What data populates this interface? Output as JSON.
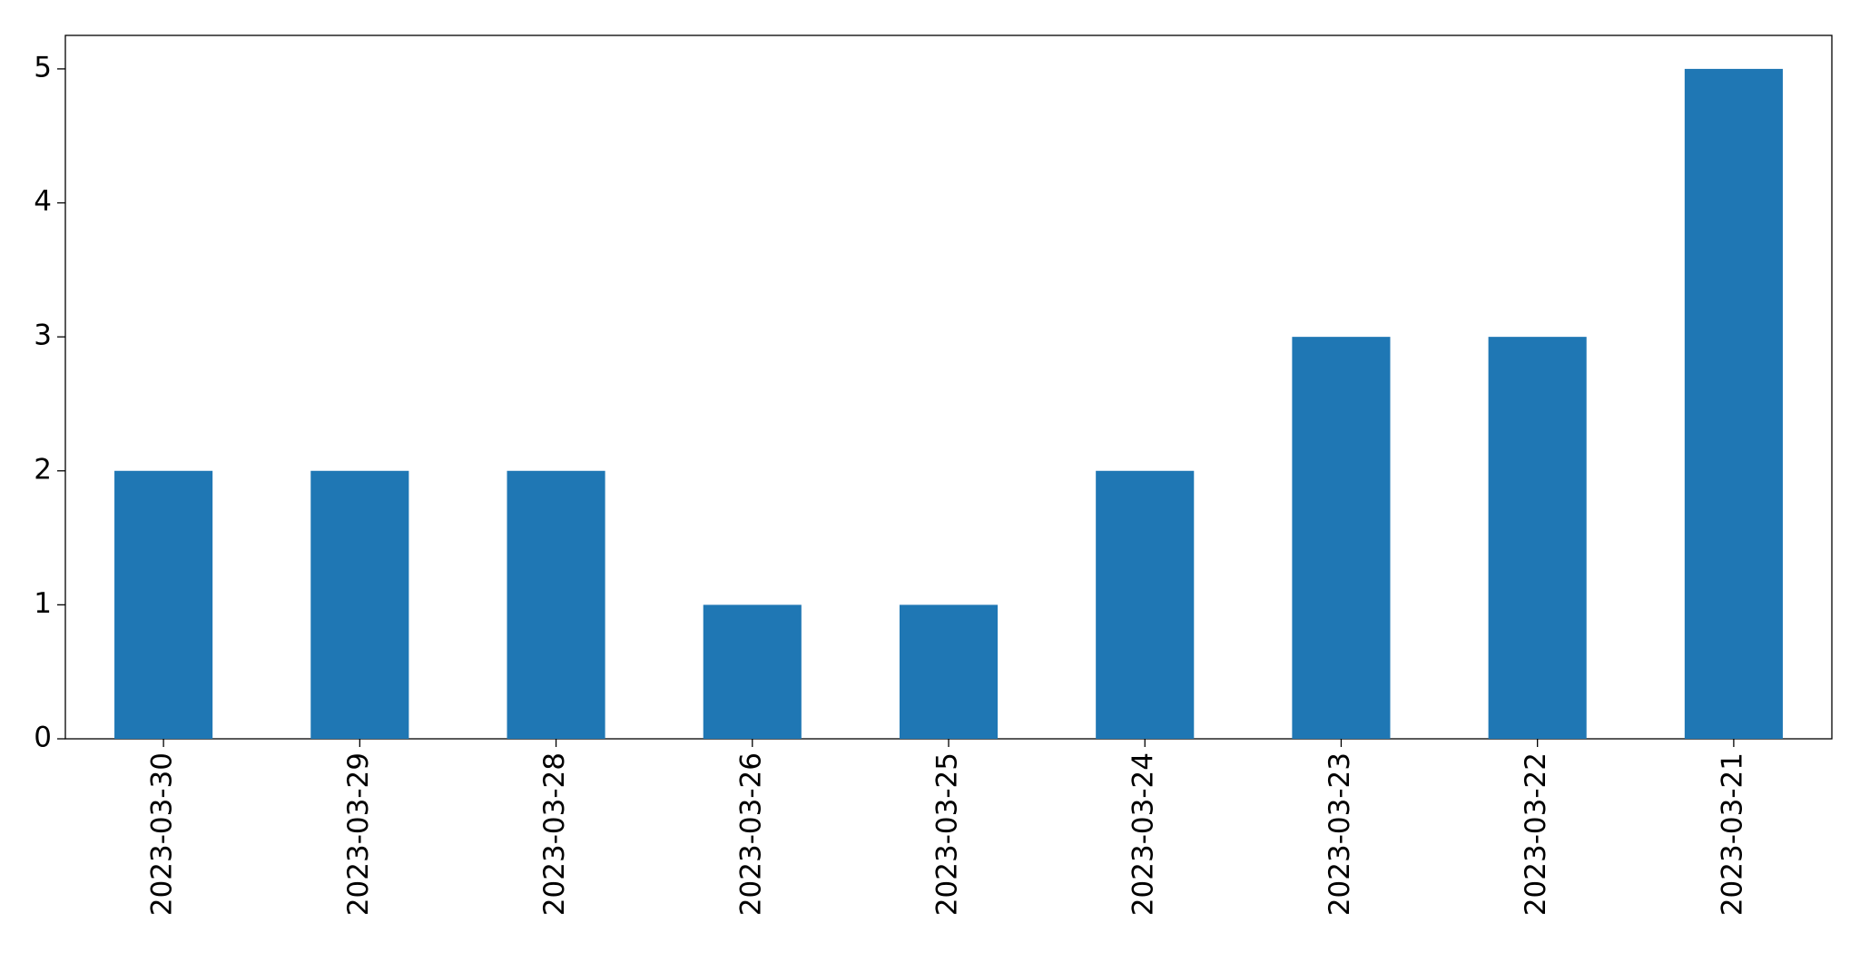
{
  "chart_data": {
    "type": "bar",
    "categories": [
      "2023-03-30",
      "2023-03-29",
      "2023-03-28",
      "2023-03-26",
      "2023-03-25",
      "2023-03-24",
      "2023-03-23",
      "2023-03-22",
      "2023-03-21"
    ],
    "values": [
      2,
      2,
      2,
      1,
      1,
      2,
      3,
      3,
      5
    ],
    "color": "#1f77b4",
    "ylim": [
      0,
      5.25
    ],
    "yticks": [
      0,
      1,
      2,
      3,
      4,
      5
    ],
    "grid": false
  }
}
